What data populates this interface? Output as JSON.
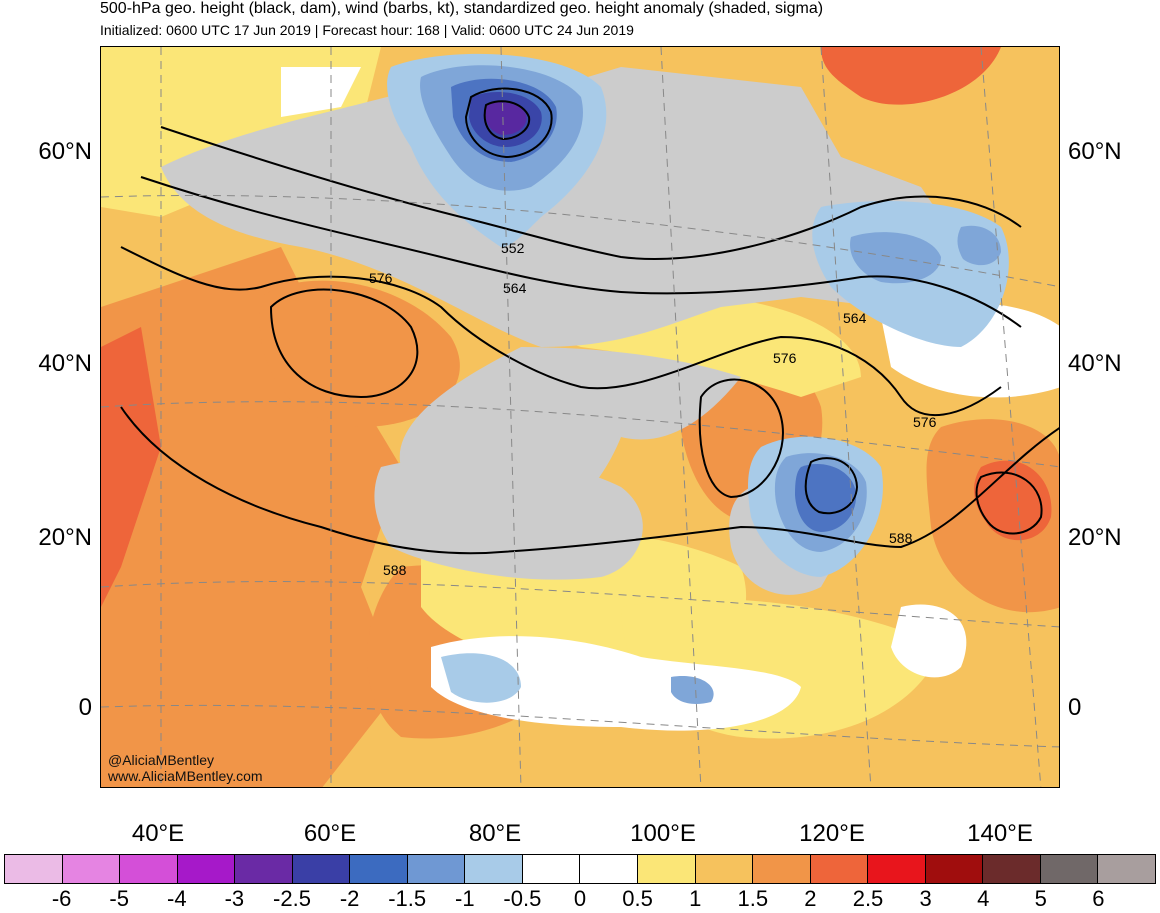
{
  "header": {
    "title": "500-hPa geo. height (black, dam), wind (barbs, kt), standardized geo. height anomaly (shaded, sigma)",
    "subtitle": "Initialized: 0600 UTC 17 Jun 2019 | Forecast hour: 168 | Valid: 0600 UTC 24 Jun 2019"
  },
  "map": {
    "lat_labels": [
      "60°N",
      "40°N",
      "20°N",
      "0"
    ],
    "lon_labels": [
      "40°E",
      "60°E",
      "80°E",
      "100°E",
      "120°E",
      "140°E"
    ],
    "contour_labels": [
      "552",
      "564",
      "576",
      "576",
      "564",
      "576",
      "588",
      "588"
    ],
    "credit_handle": "@AliciaMBentley",
    "credit_url": "www.AliciaMBentley.com",
    "colors": {
      "neutral_gray": "#cccccc",
      "white": "#ffffff",
      "pos_05": "#fbe677",
      "pos_10": "#f6c25d",
      "pos_15": "#f19548",
      "pos_20": "#ee653a",
      "neg_05": "#a8cbe8",
      "neg_10": "#7fa6d8",
      "neg_15": "#4d74c2",
      "neg_20": "#3a45a8",
      "neg_25": "#5828a0"
    }
  },
  "colorbar": {
    "labels": [
      "-6",
      "-5",
      "-4",
      "-3",
      "-2.5",
      "-2",
      "-1.5",
      "-1",
      "-0.5",
      "0",
      "0.5",
      "1",
      "1.5",
      "2",
      "2.5",
      "3",
      "4",
      "5",
      "6"
    ],
    "colors": [
      "#ebbbe6",
      "#e584e2",
      "#d44fd8",
      "#a619c9",
      "#6a2aa5",
      "#3a3fa6",
      "#3c6bc0",
      "#6f98d3",
      "#a8cbe8",
      "#ffffff",
      "#ffffff",
      "#fbe677",
      "#f6c25d",
      "#f19548",
      "#ee653a",
      "#e8151c",
      "#a00d0d",
      "#6b2b2b",
      "#706868",
      "#a89e9e"
    ]
  }
}
